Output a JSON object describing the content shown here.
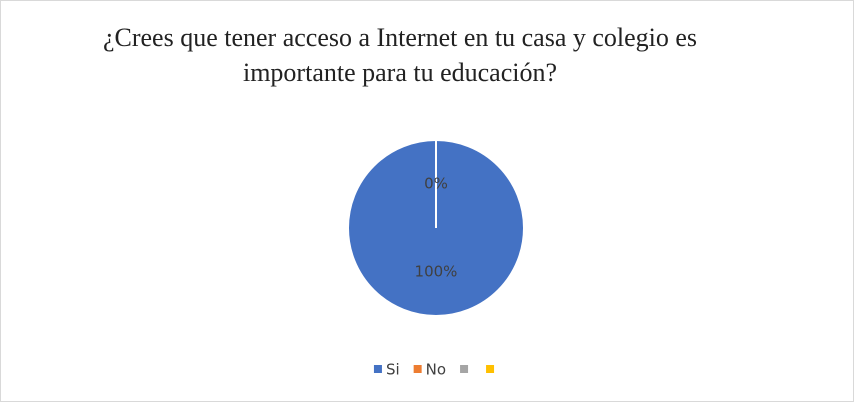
{
  "chart_data": {
    "type": "pie",
    "title": "¿Crees que tener acceso a Internet en tu casa y colegio es importante para tu educación?",
    "categories": [
      "Si",
      "No",
      null,
      null
    ],
    "values": [
      100,
      0,
      null,
      null
    ],
    "value_labels": [
      "100%",
      "0%",
      null,
      null
    ],
    "colors": [
      "#4472c4",
      "#ed7d31",
      "#a5a5a5",
      "#ffc000"
    ],
    "legend": "bottom"
  }
}
